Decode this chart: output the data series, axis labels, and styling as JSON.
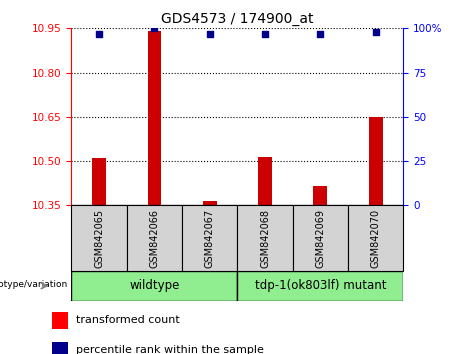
{
  "title": "GDS4573 / 174900_at",
  "samples": [
    "GSM842065",
    "GSM842066",
    "GSM842067",
    "GSM842068",
    "GSM842069",
    "GSM842070"
  ],
  "bar_values": [
    10.51,
    10.94,
    10.365,
    10.515,
    10.415,
    10.65
  ],
  "bar_bottom": 10.35,
  "dot_values": [
    97,
    100,
    97,
    97,
    97,
    98
  ],
  "ylim_left": [
    10.35,
    10.95
  ],
  "ylim_right": [
    0,
    100
  ],
  "yticks_left": [
    10.35,
    10.5,
    10.65,
    10.8,
    10.95
  ],
  "yticks_right": [
    0,
    25,
    50,
    75,
    100
  ],
  "ytick_labels_right": [
    "0",
    "25",
    "50",
    "75",
    "100%"
  ],
  "bar_color": "#cc0000",
  "dot_color": "#00008b",
  "group1_label": "wildtype",
  "group2_label": "tdp-1(ok803lf) mutant",
  "group1_indices": [
    0,
    1,
    2
  ],
  "group2_indices": [
    3,
    4,
    5
  ],
  "group_bg_color": "#90ee90",
  "xtick_bg_color": "#d3d3d3",
  "legend_items": [
    "transformed count",
    "percentile rank within the sample"
  ],
  "plot_bg_color": "#ffffff"
}
